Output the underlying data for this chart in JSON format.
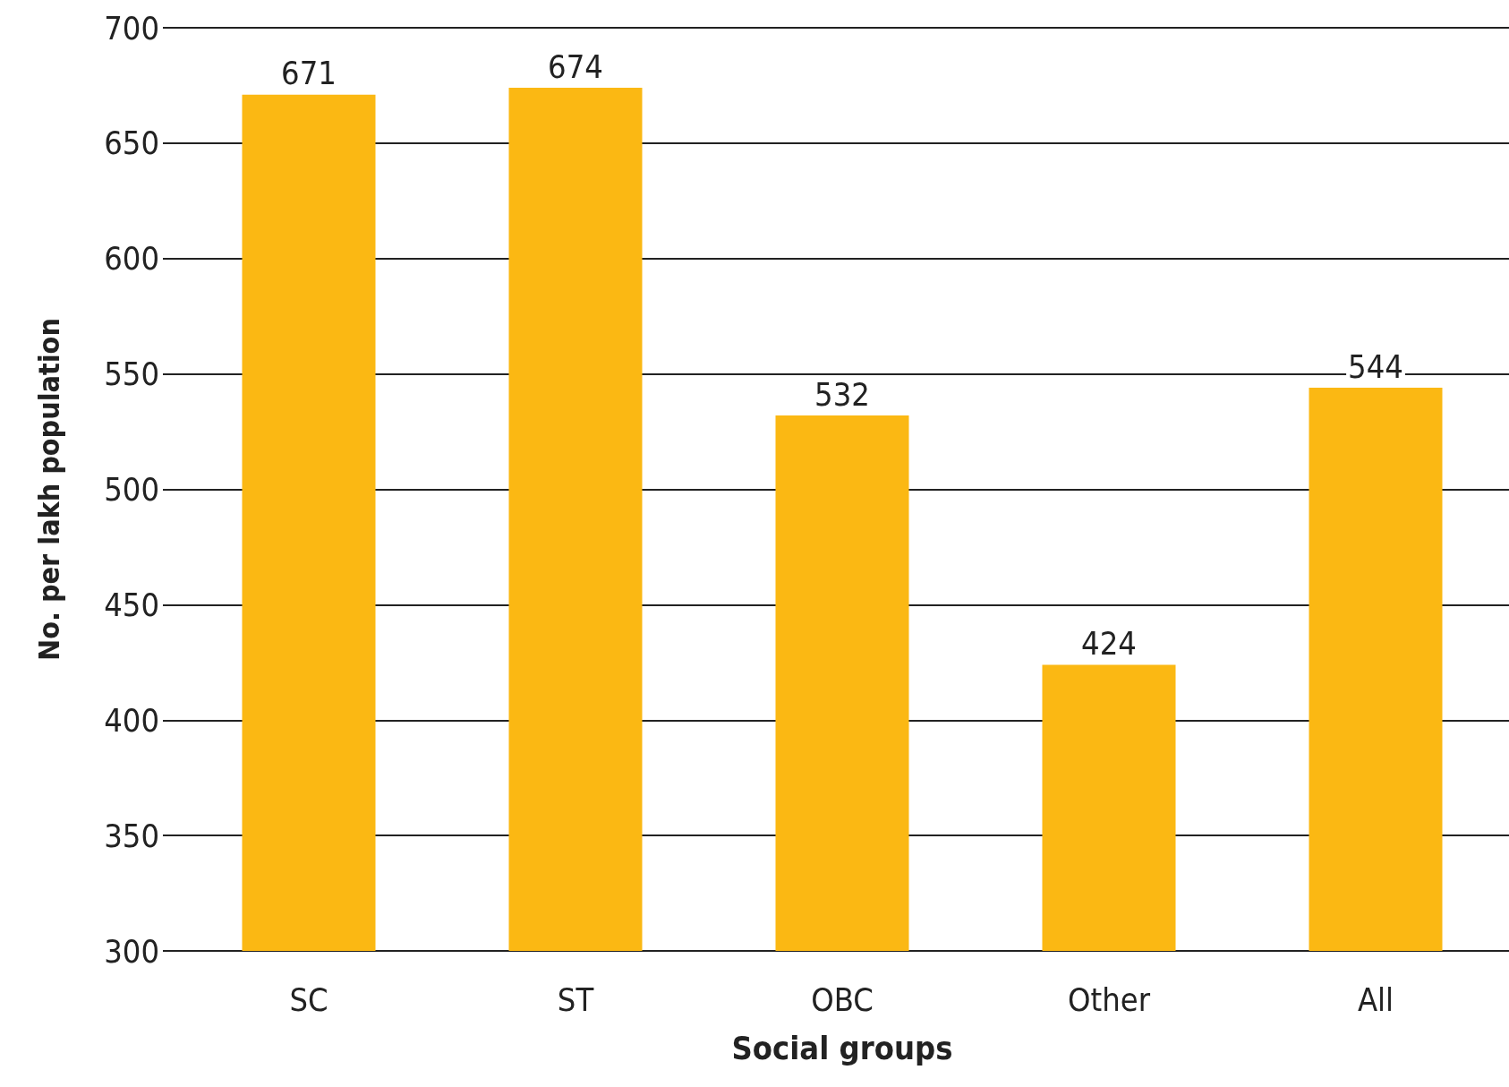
{
  "chart_data": {
    "type": "bar",
    "xlabel": "Social groups",
    "ylabel": "No. per lakh population",
    "categories": [
      "SC",
      "ST",
      "OBC",
      "Other",
      "All"
    ],
    "values": [
      671,
      674,
      532,
      424,
      544
    ],
    "color": "#fbb813",
    "ylim": [
      300,
      700
    ],
    "yticks": [
      300,
      350,
      400,
      450,
      500,
      550,
      600,
      650,
      700
    ],
    "grid": "y",
    "data_labels": true
  }
}
